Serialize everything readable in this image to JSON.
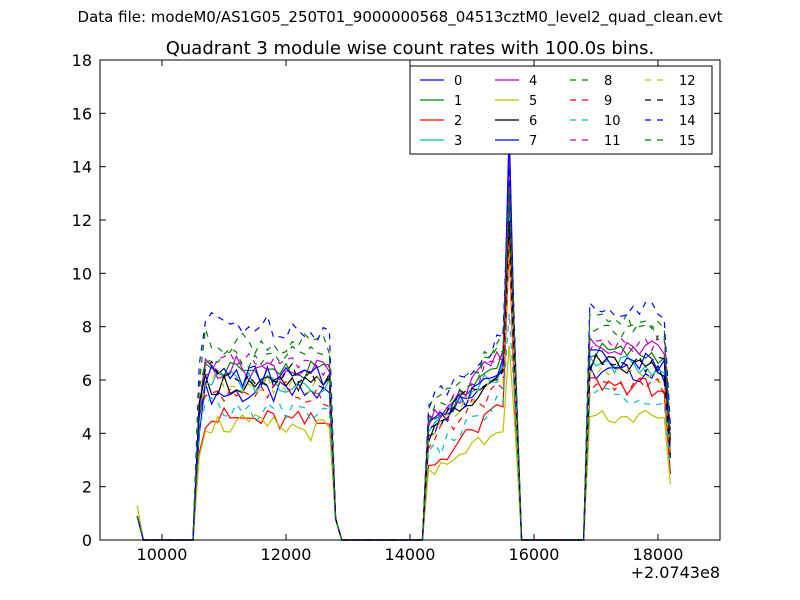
{
  "suptitle": "Data file: modeM0/AS1G05_250T01_9000000568_04513cztM0_level2_quad_clean.evt",
  "chart_data": {
    "type": "line",
    "title": "Quadrant 3 module wise count rates with 100.0s bins.",
    "xlabel": "",
    "ylabel": "",
    "x_offset_label": "+2.0743e8",
    "xlim": [
      9000,
      19000
    ],
    "ylim": [
      0,
      18
    ],
    "xticks": [
      10000,
      12000,
      14000,
      16000,
      18000
    ],
    "yticks": [
      0,
      2,
      4,
      6,
      8,
      10,
      12,
      14,
      16,
      18
    ],
    "grid": false,
    "legend": {
      "placement": "top-right",
      "columns": 4
    },
    "segments": [
      {
        "x_start": 9600,
        "x_end": 10500,
        "profile": "pre"
      },
      {
        "x_start": 10500,
        "x_end": 12900,
        "profile": "orbit1"
      },
      {
        "x_start": 12900,
        "x_end": 14200,
        "profile": "gap"
      },
      {
        "x_start": 14200,
        "x_end": 15900,
        "profile": "orbit2"
      },
      {
        "x_start": 16800,
        "x_end": 18200,
        "profile": "orbit3"
      }
    ],
    "series": [
      {
        "name": "0",
        "color": "#0000ff",
        "dash": "solid",
        "levels": [
          0.9,
          5.5,
          5.4,
          6.6,
          12.5,
          6.3,
          5.8
        ]
      },
      {
        "name": "1",
        "color": "#008000",
        "dash": "solid",
        "levels": [
          0.9,
          6.4,
          5.8,
          6.8,
          13.0,
          7.1,
          6.0
        ]
      },
      {
        "name": "2",
        "color": "#ff0000",
        "dash": "solid",
        "levels": [
          0.9,
          4.6,
          3.6,
          5.0,
          11.0,
          5.9,
          4.5
        ]
      },
      {
        "name": "3",
        "color": "#00bfbf",
        "dash": "solid",
        "levels": [
          0.9,
          6.0,
          5.6,
          6.4,
          12.2,
          6.6,
          5.9
        ]
      },
      {
        "name": "4",
        "color": "#bf00bf",
        "dash": "solid",
        "levels": [
          0.9,
          6.5,
          6.0,
          7.0,
          14.5,
          7.3,
          6.8
        ]
      },
      {
        "name": "5",
        "color": "#bfbf00",
        "dash": "solid",
        "levels": [
          1.3,
          4.4,
          3.2,
          4.4,
          7.3,
          4.7,
          3.8
        ]
      },
      {
        "name": "6",
        "color": "#000000",
        "dash": "solid",
        "levels": [
          0.9,
          5.9,
          5.2,
          6.2,
          11.8,
          6.6,
          5.6
        ]
      },
      {
        "name": "7",
        "color": "#0000ff",
        "dash": "solid",
        "levels": [
          0.9,
          6.2,
          5.6,
          6.5,
          15.5,
          6.8,
          6.0
        ]
      },
      {
        "name": "8",
        "color": "#008000",
        "dash": "dashed",
        "levels": [
          0.9,
          7.5,
          6.4,
          7.5,
          12.5,
          8.2,
          7.5
        ]
      },
      {
        "name": "9",
        "color": "#ff0000",
        "dash": "dashed",
        "levels": [
          0.9,
          5.6,
          5.0,
          5.8,
          11.5,
          5.8,
          5.6
        ]
      },
      {
        "name": "10",
        "color": "#00bfbf",
        "dash": "dashed",
        "levels": [
          0.9,
          4.9,
          4.2,
          5.3,
          8.5,
          5.5,
          4.8
        ]
      },
      {
        "name": "11",
        "color": "#bf00bf",
        "dash": "dashed",
        "levels": [
          0.9,
          6.6,
          6.0,
          6.8,
          13.5,
          7.4,
          7.0
        ]
      },
      {
        "name": "12",
        "color": "#bfbf00",
        "dash": "dashed",
        "levels": [
          0.9,
          6.0,
          5.4,
          6.1,
          11.0,
          6.2,
          6.0
        ]
      },
      {
        "name": "13",
        "color": "#000000",
        "dash": "dashed",
        "levels": [
          0.9,
          6.3,
          5.6,
          6.4,
          12.0,
          6.7,
          6.2
        ]
      },
      {
        "name": "14",
        "color": "#0000ff",
        "dash": "dashed",
        "levels": [
          0.9,
          8.2,
          6.8,
          7.6,
          14.0,
          8.8,
          7.8
        ]
      },
      {
        "name": "15",
        "color": "#008000",
        "dash": "dashed",
        "levels": [
          0.9,
          7.0,
          6.2,
          7.2,
          13.2,
          7.8,
          7.0
        ]
      }
    ]
  }
}
